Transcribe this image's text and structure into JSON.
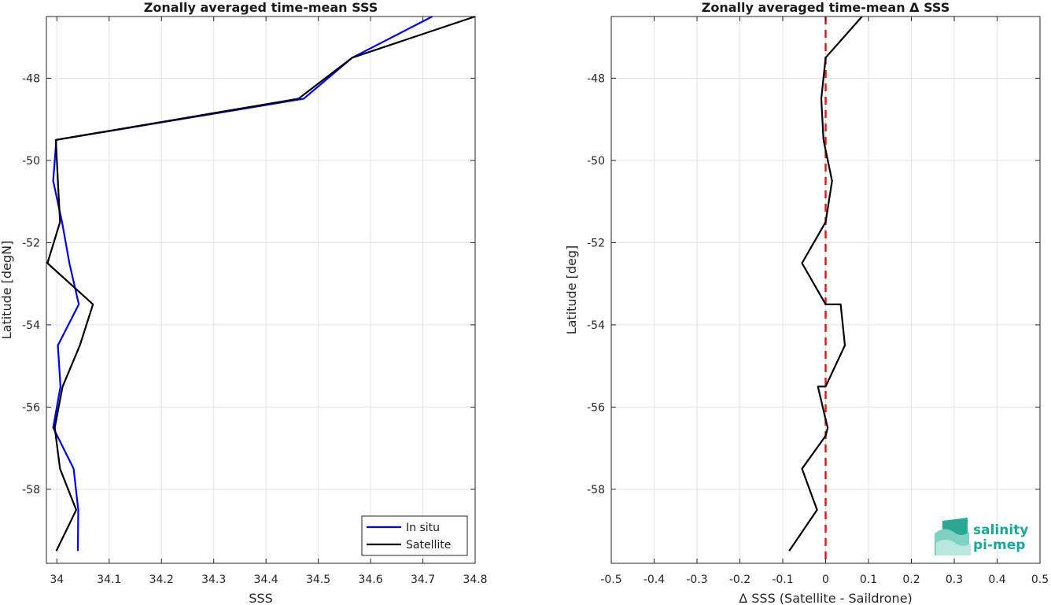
{
  "chart_data": [
    {
      "type": "line",
      "title": "Zonally averaged time-mean SSS",
      "xlabel": "SSS",
      "ylabel": "Latitude [degN]",
      "xlim": [
        33.98,
        34.8
      ],
      "ylim": [
        -59.8,
        -46.5
      ],
      "xticks": [
        34,
        34.1,
        34.2,
        34.3,
        34.4,
        34.5,
        34.6,
        34.7,
        34.8
      ],
      "xtick_labels": [
        "34",
        "34.1",
        "34.2",
        "34.3",
        "34.4",
        "34.5",
        "34.6",
        "34.7",
        "34.8"
      ],
      "yticks": [
        -58,
        -56,
        -54,
        -52,
        -50,
        -48
      ],
      "ytick_labels": [
        "-58",
        "-56",
        "-54",
        "-52",
        "-50",
        "-48"
      ],
      "grid": true,
      "legend": "bottom-right",
      "series": [
        {
          "name": "In situ",
          "color": "#0000ee",
          "points": [
            [
              34.718,
              -46.5
            ],
            [
              34.565,
              -47.5
            ],
            [
              34.472,
              -48.5
            ],
            [
              33.999,
              -49.5
            ],
            [
              33.993,
              -50.5
            ],
            [
              34.01,
              -51.5
            ],
            [
              34.024,
              -52.5
            ],
            [
              34.042,
              -53.5
            ],
            [
              34.002,
              -54.5
            ],
            [
              34.007,
              -55.5
            ],
            [
              33.993,
              -56.5
            ],
            [
              34.032,
              -57.5
            ],
            [
              34.041,
              -58.5
            ],
            [
              34.04,
              -59.5
            ]
          ]
        },
        {
          "name": "Satellite",
          "color": "#000000",
          "points": [
            [
              34.8,
              -46.5
            ],
            [
              34.565,
              -47.5
            ],
            [
              34.462,
              -48.5
            ],
            [
              33.998,
              -49.5
            ],
            [
              34.002,
              -50.5
            ],
            [
              34.006,
              -51.5
            ],
            [
              33.982,
              -52.5
            ],
            [
              34.069,
              -53.5
            ],
            [
              34.044,
              -54.5
            ],
            [
              34.011,
              -55.5
            ],
            [
              33.996,
              -56.5
            ],
            [
              34.006,
              -57.5
            ],
            [
              34.037,
              -58.5
            ],
            [
              33.999,
              -59.5
            ]
          ]
        }
      ]
    },
    {
      "type": "line",
      "title": "Zonally averaged time-mean Δ SSS",
      "xlabel": "Δ SSS (Satellite - Saildrone)",
      "ylabel": "Latitude [deg]",
      "xlim": [
        -0.5,
        0.5
      ],
      "ylim": [
        -59.8,
        -46.5
      ],
      "xticks": [
        -0.5,
        -0.4,
        -0.3,
        -0.2,
        -0.1,
        0,
        0.1,
        0.2,
        0.3,
        0.4,
        0.5
      ],
      "xtick_labels": [
        "-0.5",
        "-0.4",
        "-0.3",
        "-0.2",
        "-0.1",
        "0",
        "0.1",
        "0.2",
        "0.3",
        "0.4",
        "0.5"
      ],
      "yticks": [
        -58,
        -56,
        -54,
        -52,
        -50,
        -48
      ],
      "ytick_labels": [
        "-58",
        "-56",
        "-54",
        "-52",
        "-50",
        "-48"
      ],
      "grid": true,
      "reference_line": {
        "x": 0,
        "color": "#e01b1b",
        "style": "dashed"
      },
      "series": [
        {
          "color": "#000000",
          "points": [
            [
              0.085,
              -46.5
            ],
            [
              0.0,
              -47.5
            ],
            [
              -0.01,
              -48.5
            ],
            [
              -0.005,
              -49.5
            ],
            [
              0.015,
              -50.5
            ],
            [
              0.0,
              -51.5
            ],
            [
              -0.055,
              -52.5
            ],
            [
              0.0,
              -53.5
            ],
            [
              0.035,
              -53.5
            ],
            [
              0.045,
              -54.5
            ],
            [
              0.0,
              -55.5
            ],
            [
              -0.018,
              -55.5
            ],
            [
              0.0,
              -56.3
            ],
            [
              0.005,
              -56.5
            ],
            [
              0.0,
              -56.7
            ],
            [
              -0.055,
              -57.5
            ],
            [
              -0.02,
              -58.5
            ],
            [
              -0.085,
              -59.5
            ]
          ]
        }
      ]
    }
  ],
  "logo": {
    "line1": "salinity",
    "line2": "pi-mep"
  }
}
